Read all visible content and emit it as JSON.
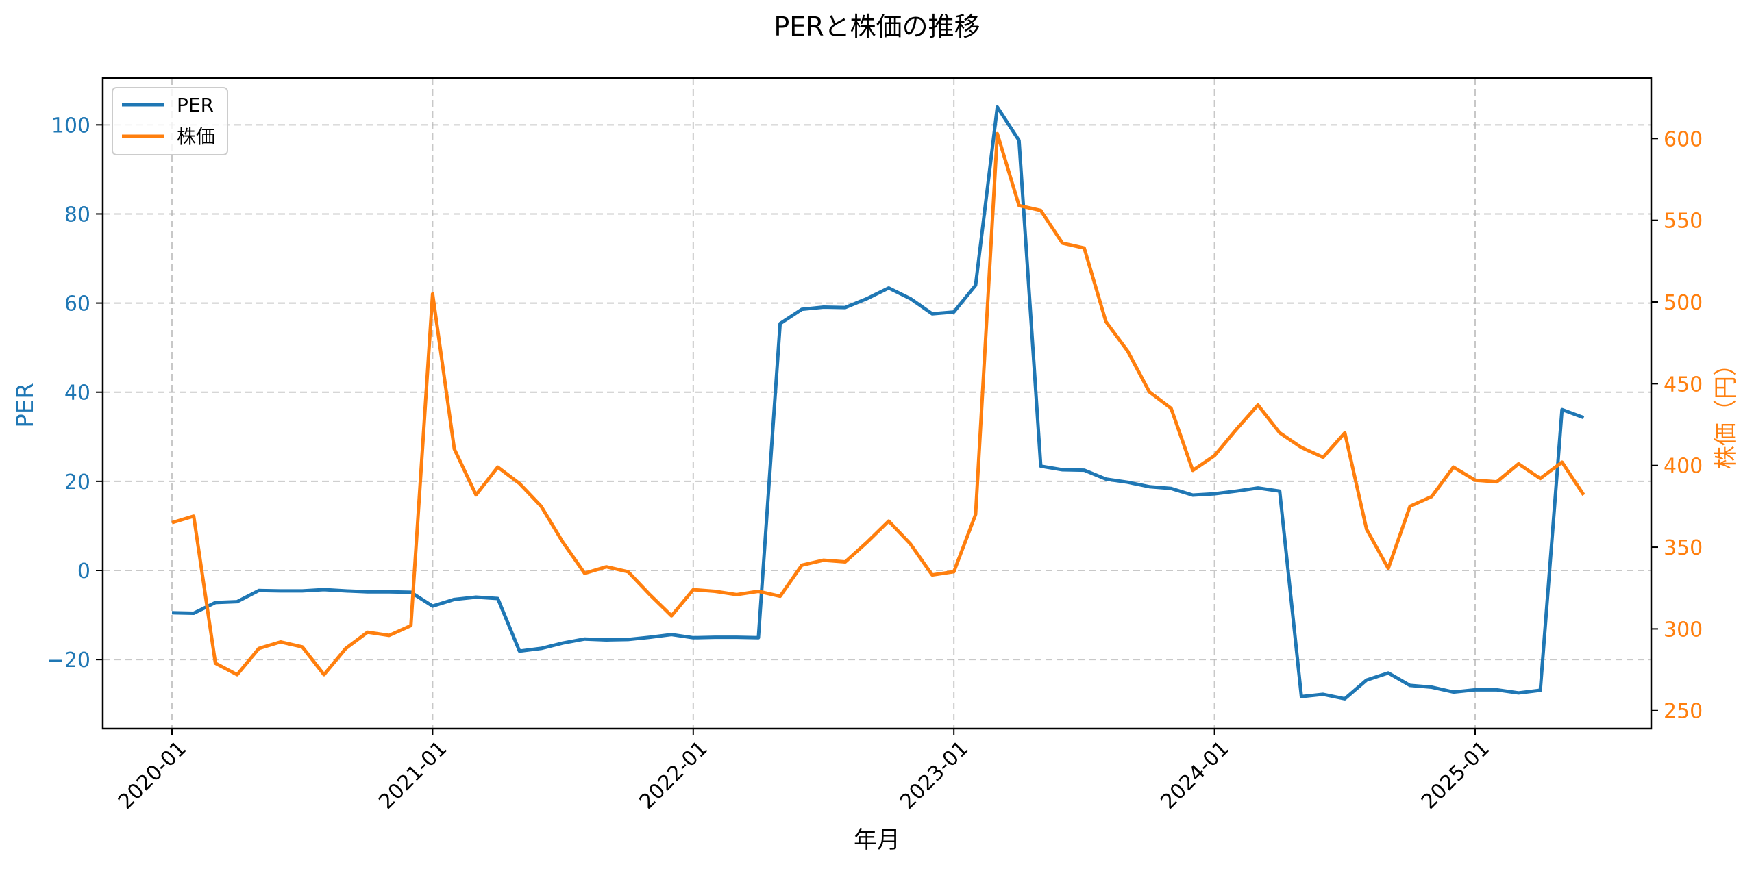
{
  "chart_data": {
    "type": "line",
    "title": "PERと株価の推移",
    "xlabel": "年月",
    "ylabel_left": "PER",
    "ylabel_right": "株価（円）",
    "x_tick_labels": [
      "2020-01",
      "2021-01",
      "2022-01",
      "2023-01",
      "2024-01",
      "2025-01"
    ],
    "y_left_ticks": [
      -20,
      0,
      20,
      40,
      60,
      80,
      100
    ],
    "y_right_ticks": [
      250,
      300,
      350,
      400,
      450,
      500,
      550,
      600
    ],
    "y_left_range": [
      -35.5,
      110.5
    ],
    "y_right_range": [
      239,
      637
    ],
    "grid": true,
    "legend_position": "upper left",
    "colors": {
      "PER": "#1f77b4",
      "株価": "#ff7f0e"
    },
    "x": [
      "2020-01",
      "2020-02",
      "2020-03",
      "2020-04",
      "2020-05",
      "2020-06",
      "2020-07",
      "2020-08",
      "2020-09",
      "2020-10",
      "2020-11",
      "2020-12",
      "2021-01",
      "2021-02",
      "2021-03",
      "2021-04",
      "2021-05",
      "2021-06",
      "2021-07",
      "2021-08",
      "2021-09",
      "2021-10",
      "2021-11",
      "2021-12",
      "2022-01",
      "2022-02",
      "2022-03",
      "2022-04",
      "2022-05",
      "2022-06",
      "2022-07",
      "2022-08",
      "2022-09",
      "2022-10",
      "2022-11",
      "2022-12",
      "2023-01",
      "2023-02",
      "2023-03",
      "2023-04",
      "2023-05",
      "2023-06",
      "2023-07",
      "2023-08",
      "2023-09",
      "2023-10",
      "2023-11",
      "2023-12",
      "2024-01",
      "2024-02",
      "2024-03",
      "2024-04",
      "2024-05",
      "2024-06",
      "2024-07",
      "2024-08",
      "2024-09",
      "2024-10",
      "2024-11",
      "2024-12",
      "2025-01",
      "2025-02",
      "2025-03",
      "2025-04",
      "2025-05",
      "2025-06"
    ],
    "series": [
      {
        "name": "PER",
        "axis": "left",
        "values": [
          -9.5,
          -9.6,
          -7.2,
          -7.0,
          -4.5,
          -4.6,
          -4.6,
          -4.3,
          -4.6,
          -4.8,
          -4.8,
          -4.9,
          -8.0,
          -6.5,
          -6.0,
          -6.3,
          -18.1,
          -17.5,
          -16.3,
          -15.4,
          -15.6,
          -15.5,
          -15.0,
          -14.4,
          -15.1,
          -15.0,
          -15.0,
          -15.1,
          55.4,
          58.6,
          59.1,
          59.0,
          61.0,
          63.4,
          61.0,
          57.6,
          58.0,
          64.0,
          104.0,
          96.5,
          23.4,
          22.6,
          22.5,
          20.5,
          19.8,
          18.8,
          18.4,
          16.9,
          17.2,
          17.8,
          18.5,
          17.8,
          -28.3,
          -27.8,
          -28.8,
          -24.6,
          -23.0,
          -25.8,
          -26.2,
          -27.3,
          -26.8,
          -26.8,
          -27.5,
          -26.9,
          36.1,
          34.3
        ]
      },
      {
        "name": "株価",
        "axis": "right",
        "values": [
          365,
          369,
          279,
          272,
          288,
          292,
          289,
          272,
          288,
          298,
          296,
          302,
          505,
          410,
          382,
          399,
          389,
          375,
          353,
          334,
          338,
          335,
          321,
          308,
          324,
          323,
          321,
          323,
          320,
          339,
          342,
          341,
          353,
          366,
          352,
          333,
          335,
          370,
          603,
          559,
          556,
          536,
          533,
          488,
          470,
          445,
          435,
          397,
          406,
          422,
          437,
          420,
          411,
          405,
          420,
          361,
          337,
          375,
          381,
          399,
          391,
          390,
          401,
          392,
          402,
          382
        ]
      }
    ]
  }
}
